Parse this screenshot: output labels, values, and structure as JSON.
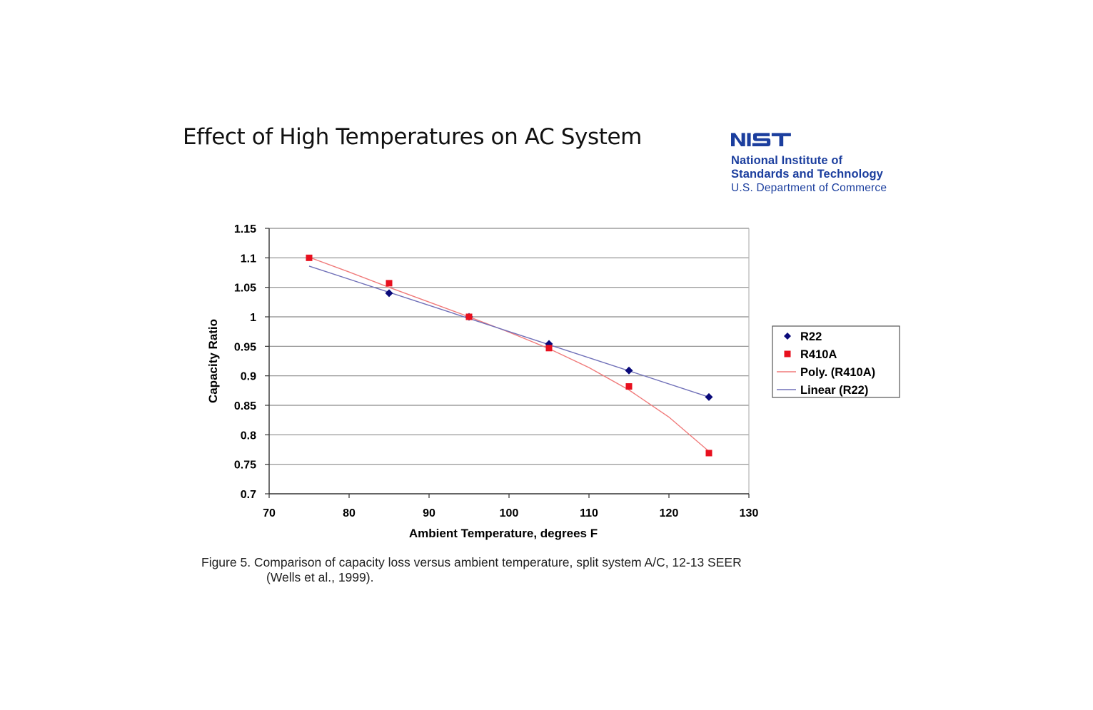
{
  "slide": {
    "title": "Effect of High Temperatures on AC System"
  },
  "logo": {
    "wordmark": "NIST",
    "line1": "National Institute of",
    "line2": "Standards and Technology",
    "line3": "U.S. Department of Commerce",
    "color": "#1b3e9e"
  },
  "caption": {
    "line1": "Figure 5. Comparison of capacity loss versus ambient temperature, split system A/C, 12-13 SEER",
    "line2": "(Wells et al., 1999)."
  },
  "chart_data": {
    "type": "scatter",
    "title": "",
    "xlabel": "Ambient Temperature, degrees F",
    "ylabel": "Capacity Ratio",
    "xlim": [
      70,
      130
    ],
    "ylim": [
      0.7,
      1.15
    ],
    "xticks": [
      70,
      80,
      90,
      100,
      110,
      120,
      130
    ],
    "xtick_labels": [
      "70",
      "80",
      "90",
      "100",
      "110",
      "120",
      "130"
    ],
    "yticks": [
      0.7,
      0.75,
      0.8,
      0.85,
      0.9,
      0.95,
      1.0,
      1.05,
      1.1,
      1.15
    ],
    "ytick_labels": [
      "0.7",
      "0.75",
      "0.8",
      "0.85",
      "0.9",
      "0.95",
      "1",
      "1.05",
      "1.1",
      "1.15"
    ],
    "grid": "horizontal",
    "legend_position": "right",
    "series": [
      {
        "name": "R22",
        "marker": "diamond",
        "color": "#0a0a7a",
        "x": [
          85,
          95,
          105,
          115,
          125
        ],
        "y": [
          1.04,
          1.0,
          0.954,
          0.909,
          0.864
        ]
      },
      {
        "name": "R410A",
        "marker": "square",
        "color": "#e8101e",
        "x": [
          75,
          85,
          95,
          105,
          115,
          125
        ],
        "y": [
          1.1,
          1.057,
          1.0,
          0.947,
          0.882,
          0.769
        ]
      }
    ],
    "trendlines": [
      {
        "name": "Poly. (R410A)",
        "kind": "polynomial",
        "color": "#f07a7a",
        "x": [
          75,
          80,
          85,
          90,
          95,
          100,
          105,
          110,
          115,
          120,
          125
        ],
        "y": [
          1.101,
          1.076,
          1.05,
          1.025,
          1.0,
          0.974,
          0.946,
          0.914,
          0.876,
          0.83,
          0.772
        ]
      },
      {
        "name": "Linear (R22)",
        "kind": "linear",
        "color": "#7070b8",
        "x": [
          75,
          125
        ],
        "y": [
          1.086,
          0.864
        ]
      }
    ],
    "legend": [
      "R22",
      "R410A",
      "Poly. (R410A)",
      "Linear (R22)"
    ]
  }
}
